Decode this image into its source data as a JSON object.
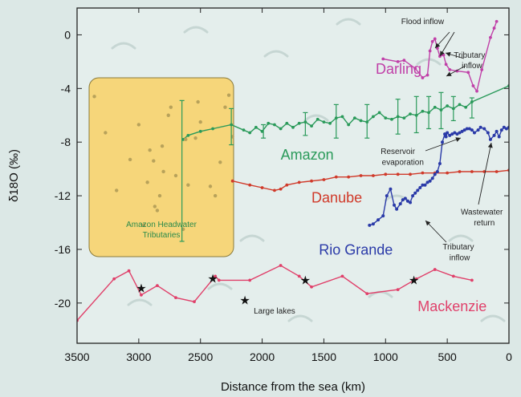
{
  "chart_data": {
    "type": "line",
    "xlabel": "Distance from the sea (km)",
    "ylabel": "δ18O (‰)",
    "xlim": [
      3500,
      0
    ],
    "ylim": [
      -23,
      2
    ],
    "x_ticks": [
      "3500",
      "3000",
      "2500",
      "2000",
      "1500",
      "1000",
      "500",
      "0"
    ],
    "y_ticks": [
      "0",
      "-4",
      "-8",
      "-12",
      "-16",
      "-20"
    ],
    "series": [
      {
        "name": "Darling",
        "color": "#c040a8",
        "x": [
          1020,
          900,
          850,
          760,
          700,
          660,
          640,
          620,
          600,
          580,
          560,
          530,
          510,
          480,
          420,
          330,
          290,
          260,
          220,
          150,
          120,
          100
        ],
        "y": [
          -1.8,
          -2.0,
          -1.9,
          -2.5,
          -3.2,
          -3.0,
          -1.2,
          -0.5,
          -0.3,
          -1.0,
          -1.6,
          -1.5,
          -2.2,
          -2.6,
          -2.7,
          -2.8,
          -3.8,
          -4.2,
          -2.6,
          -0.2,
          0.5,
          1.0
        ]
      },
      {
        "name": "Amazon",
        "color": "#2a9a5a",
        "x": [
          2640,
          2600,
          2500,
          2400,
          2250,
          2150,
          2100,
          2050,
          2000,
          1950,
          1900,
          1850,
          1800,
          1750,
          1700,
          1650,
          1600,
          1550,
          1500,
          1450,
          1400,
          1350,
          1300,
          1250,
          1200,
          1150,
          1100,
          1050,
          1000,
          950,
          900,
          850,
          800,
          750,
          700,
          650,
          600,
          550,
          500,
          450,
          400,
          350,
          300,
          0
        ],
        "y": [
          -7.8,
          -7.5,
          -7.2,
          -7.0,
          -6.7,
          -7.1,
          -7.3,
          -6.9,
          -7.2,
          -6.6,
          -6.7,
          -7.0,
          -6.6,
          -6.9,
          -6.6,
          -6.5,
          -6.8,
          -6.3,
          -6.5,
          -6.6,
          -6.2,
          -6.1,
          -6.7,
          -6.2,
          -6.4,
          -6.5,
          -6.1,
          -5.8,
          -6.2,
          -6.3,
          -6.1,
          -6.2,
          -5.9,
          -6.0,
          -5.7,
          -5.8,
          -5.4,
          -5.6,
          -5.3,
          -5.5,
          -5.2,
          -5.4,
          -5.0,
          -3.8
        ]
      },
      {
        "name": "Danube",
        "color": "#d03a2a",
        "x": [
          2240,
          2100,
          2000,
          1900,
          1850,
          1800,
          1700,
          1600,
          1500,
          1400,
          1300,
          1200,
          1100,
          1000,
          900,
          800,
          700,
          600,
          500,
          400,
          300,
          200,
          100,
          0
        ],
        "y": [
          -10.9,
          -11.2,
          -11.4,
          -11.6,
          -11.5,
          -11.2,
          -11.0,
          -10.9,
          -10.8,
          -10.6,
          -10.6,
          -10.5,
          -10.5,
          -10.4,
          -10.4,
          -10.4,
          -10.3,
          -10.3,
          -10.3,
          -10.2,
          -10.2,
          -10.2,
          -10.2,
          -10.1
        ]
      },
      {
        "name": "Rio Grande",
        "color": "#2a3aa8",
        "x": [
          1130,
          1100,
          1060,
          1020,
          990,
          960,
          930,
          910,
          880,
          860,
          840,
          820,
          800,
          780,
          760,
          740,
          720,
          700,
          680,
          660,
          640,
          620,
          600,
          580,
          560,
          540,
          520,
          510,
          500,
          480,
          460,
          440,
          420,
          400,
          380,
          360,
          340,
          320,
          300,
          280,
          250,
          230,
          200,
          170,
          150,
          120,
          100,
          80,
          60,
          40,
          20,
          0
        ],
        "y": [
          -14.2,
          -14.1,
          -13.8,
          -13.5,
          -12.0,
          -11.5,
          -12.7,
          -13.0,
          -12.6,
          -12.3,
          -12.2,
          -12.4,
          -12.5,
          -12.0,
          -11.8,
          -11.6,
          -11.4,
          -11.2,
          -11.2,
          -11.0,
          -10.9,
          -10.7,
          -10.4,
          -10.2,
          -9.6,
          -8.0,
          -7.4,
          -7.6,
          -7.3,
          -7.5,
          -7.4,
          -7.3,
          -7.4,
          -7.3,
          -7.2,
          -7.1,
          -7.0,
          -7.0,
          -7.1,
          -7.3,
          -7.1,
          -6.9,
          -7.0,
          -7.3,
          -7.8,
          -7.5,
          -7.2,
          -7.6,
          -7.1,
          -6.9,
          -7.0,
          -6.9
        ]
      },
      {
        "name": "Mackenzie",
        "color": "#e0406a",
        "x": [
          3500,
          3200,
          3080,
          2980,
          2850,
          2700,
          2550,
          2380,
          2350,
          2100,
          1850,
          1700,
          1600,
          1350,
          1150,
          900,
          750,
          600,
          450,
          300
        ],
        "y": [
          -21.3,
          -18.2,
          -17.6,
          -19.4,
          -18.7,
          -19.6,
          -19.9,
          -18.0,
          -18.3,
          -18.3,
          -17.2,
          -18.0,
          -18.8,
          -18.0,
          -19.3,
          -19.0,
          -18.2,
          -17.5,
          -18.0,
          -18.3
        ]
      }
    ],
    "headwater_points": {
      "x": [
        3360,
        3270,
        3180,
        3070,
        3000,
        2960,
        2930,
        2910,
        2880,
        2870,
        2850,
        2830,
        2810,
        2800,
        2760,
        2740,
        2700,
        2640,
        2620,
        2600,
        2540,
        2520,
        2500,
        2420,
        2380,
        2340,
        2300,
        2270,
        2240
      ],
      "y": [
        -4.6,
        -7.3,
        -11.6,
        -9.3,
        -6.7,
        -14.2,
        -11.0,
        -8.6,
        -9.4,
        -12.8,
        -13.1,
        -12.0,
        -8.3,
        -10.2,
        -6.0,
        -5.4,
        -10.5,
        -14.5,
        -7.8,
        -11.2,
        -7.7,
        -5.0,
        -6.5,
        -11.3,
        -12.0,
        -9.5,
        -5.4,
        -4.5,
        -7.6
      ]
    },
    "amazon_errorbars": [
      {
        "x": 2650,
        "lo": -15.4,
        "hi": -4.9
      },
      {
        "x": 2250,
        "lo": -8.2,
        "hi": -5.5
      },
      {
        "x": 1990,
        "lo": -7.7,
        "hi": -6.7
      },
      {
        "x": 1650,
        "lo": -7.5,
        "hi": -5.8
      },
      {
        "x": 1400,
        "lo": -7.7,
        "hi": -5.2
      },
      {
        "x": 1150,
        "lo": -7.7,
        "hi": -5.2
      },
      {
        "x": 900,
        "lo": -7.4,
        "hi": -4.8
      },
      {
        "x": 750,
        "lo": -7.3,
        "hi": -4.6
      },
      {
        "x": 650,
        "lo": -7.0,
        "hi": -4.6
      },
      {
        "x": 550,
        "lo": -7.0,
        "hi": -4.3
      },
      {
        "x": 450,
        "lo": -6.4,
        "hi": -4.6
      },
      {
        "x": 300,
        "lo": -6.2,
        "hi": -4.7
      }
    ],
    "stars": {
      "x": [
        2980,
        2400,
        1650,
        770,
        2140
      ],
      "y": [
        -18.9,
        -18.2,
        -18.3,
        -18.3,
        -19.8
      ]
    },
    "series_labels": [
      {
        "text": "Darling",
        "x": 1080,
        "y": -2.9,
        "color": "#c040a8"
      },
      {
        "text": "Amazon",
        "x": 1850,
        "y": -9.3,
        "color": "#2a9a5a"
      },
      {
        "text": "Danube",
        "x": 1600,
        "y": -12.5,
        "color": "#d03a2a"
      },
      {
        "text": "Rio Grande",
        "x": 1540,
        "y": -16.4,
        "color": "#2a3aa8"
      },
      {
        "text": "Mackenzie",
        "x": 740,
        "y": -20.6,
        "color": "#e0406a"
      }
    ],
    "annotations": [
      {
        "text": "Flood inflow",
        "x": 700,
        "y": 0.8
      },
      {
        "text": "Tributary",
        "x": 320,
        "y": -1.7
      },
      {
        "text": "inflow",
        "x": 300,
        "y": -2.5
      },
      {
        "text": "Reservoir",
        "x": 900,
        "y": -8.9
      },
      {
        "text": "evaporation",
        "x": 860,
        "y": -9.7
      },
      {
        "text": "Wastewater",
        "x": 220,
        "y": -13.4
      },
      {
        "text": "return",
        "x": 200,
        "y": -14.2
      },
      {
        "text": "Tributary",
        "x": 410,
        "y": -16.0
      },
      {
        "text": "inflow",
        "x": 400,
        "y": -16.8
      },
      {
        "text": "Large  lakes",
        "x": 1900,
        "y": -20.8
      }
    ],
    "headwater_label": {
      "line1": "Amazon Headwater",
      "line2": "Tributaries"
    },
    "background": "#dce8e6",
    "headwater_box_color": "#f6d67a"
  }
}
